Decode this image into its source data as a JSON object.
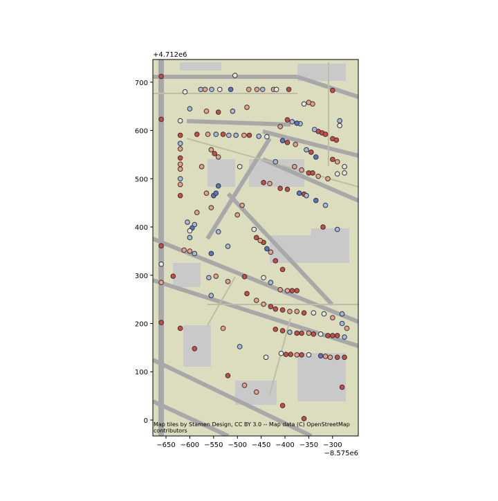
{
  "chart_data": {
    "type": "scatter",
    "offset_y": "+4.712e6",
    "offset_x": "−8.575e6",
    "attribution": "Map tiles by Stamen Design, CC BY 3.0 -- Map data (C) OpenStreetMap contributors",
    "xlim": [
      -677.6,
      -246
    ],
    "ylim": [
      -33,
      747
    ],
    "xticks": [
      {
        "value": -650,
        "label": "−650"
      },
      {
        "value": -600,
        "label": "−600"
      },
      {
        "value": -550,
        "label": "−550"
      },
      {
        "value": -500,
        "label": "−500"
      },
      {
        "value": -450,
        "label": "−450"
      },
      {
        "value": -400,
        "label": "−400"
      },
      {
        "value": -350,
        "label": "−350"
      },
      {
        "value": -300,
        "label": "−300"
      }
    ],
    "yticks": [
      0,
      100,
      200,
      300,
      400,
      500,
      600,
      700
    ],
    "series": [
      {
        "color": "#cc4a47",
        "x": [
          -660,
          -660,
          -660,
          -660,
          -620,
          -620,
          -620,
          -540,
          -392,
          -585,
          -530,
          -475,
          -548,
          -395,
          -330,
          -322,
          -315,
          -300,
          -292,
          -300,
          -395,
          -345,
          -300,
          -350,
          -342,
          -445,
          -410,
          -395,
          -360,
          -320,
          -460,
          -445,
          -420,
          -405,
          -385,
          -375,
          -635,
          -485,
          -480,
          -430,
          -420,
          -405,
          -360,
          -620,
          -420,
          -405,
          -375,
          -365,
          -340,
          -310,
          -300,
          -290,
          -398,
          -388,
          -365,
          -290,
          -275,
          -590,
          -520,
          -405,
          -360,
          -280
        ],
        "values": [
          712,
          623,
          361,
          202,
          590,
          543,
          465,
          638,
          685,
          592,
          592,
          590,
          552,
          622,
          598,
          595,
          592,
          583,
          580,
          683,
          575,
          555,
          540,
          512,
          512,
          492,
          480,
          478,
          468,
          400,
          378,
          368,
          330,
          312,
          268,
          268,
          298,
          297,
          262,
          235,
          230,
          228,
          222,
          190,
          188,
          185,
          180,
          180,
          178,
          175,
          175,
          175,
          136,
          136,
          135,
          130,
          130,
          148,
          92,
          30,
          3,
          68
        ]
      },
      {
        "color": "#e8a08a",
        "x": [
          -660,
          -620,
          -620,
          -620,
          -620,
          -565,
          -480,
          -568,
          -476,
          -459,
          -424,
          -562,
          -486,
          -555,
          -540,
          -410,
          -350,
          -342,
          -378,
          -290,
          -380,
          -365,
          -330,
          -310,
          -432,
          -575,
          -565,
          -585,
          -555,
          -490,
          -500,
          -452,
          -430,
          -410,
          -395,
          -612,
          -600,
          -545,
          -520,
          -460,
          -445,
          -390,
          -375,
          -300,
          -270,
          -530,
          -350,
          -375,
          -315,
          -305,
          -485,
          -460
        ],
        "values": [
          285,
          562,
          530,
          520,
          488,
          640,
          648,
          685,
          685,
          685,
          685,
          592,
          590,
          560,
          545,
          608,
          658,
          655,
          571,
          535,
          525,
          518,
          505,
          500,
          490,
          525,
          470,
          430,
          440,
          445,
          425,
          372,
          348,
          270,
          268,
          352,
          350,
          298,
          287,
          248,
          240,
          225,
          225,
          212,
          190,
          190,
          180,
          135,
          132,
          130,
          72,
          58
        ]
      },
      {
        "color": "#a5b9e0",
        "x": [
          -620,
          -620,
          -600,
          -510,
          -577,
          -554,
          -447,
          -545,
          -518,
          -503,
          -455,
          -385,
          -368,
          -338,
          -285,
          -355,
          -420,
          -355,
          -315,
          -290,
          -605,
          -590,
          -540,
          -520,
          -430,
          -600,
          -590,
          -560,
          -555,
          -280,
          -280,
          -390,
          -275,
          -495
        ],
        "values": [
          573,
          500,
          645,
          640,
          685,
          685,
          685,
          592,
          590,
          590,
          588,
          618,
          614,
          602,
          620,
          560,
          535,
          465,
          445,
          395,
          410,
          405,
          390,
          360,
          285,
          378,
          345,
          295,
          258,
          220,
          200,
          182,
          172,
          152
        ]
      },
      {
        "color": "#5b74c8",
        "x": [
          -514,
          -375,
          -405,
          -335,
          -370,
          -335,
          -550,
          -545,
          -540,
          -595,
          -438,
          -555,
          -325
        ],
        "values": [
          685,
          615,
          579,
          545,
          470,
          455,
          465,
          470,
          485,
          398,
          355,
          345,
          133
        ]
      },
      {
        "color": "#e6e6e6",
        "x": [
          -660,
          -620,
          -610,
          -537,
          -418,
          -505,
          -438,
          -495,
          -360,
          -285,
          -275,
          -275,
          -290,
          -600,
          -465,
          -445,
          -340,
          -318,
          -325,
          -440,
          -408,
          -350
        ],
        "values": [
          323,
          620,
          680,
          685,
          685,
          714,
          587,
          525,
          655,
          610,
          525,
          512,
          510,
          392,
          395,
          295,
          222,
          220,
          178,
          130,
          138,
          135
        ]
      }
    ]
  }
}
